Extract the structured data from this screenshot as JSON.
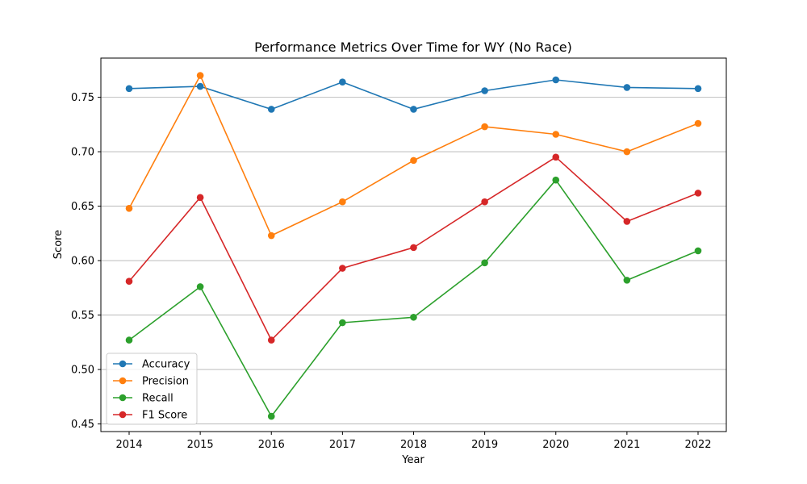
{
  "chart_data": {
    "type": "line",
    "title": "Performance Metrics Over Time for WY (No Race)",
    "xlabel": "Year",
    "ylabel": "Score",
    "x": [
      "2014",
      "2015",
      "2016",
      "2017",
      "2018",
      "2019",
      "2020",
      "2021",
      "2022"
    ],
    "y_ticks": [
      "0.45",
      "0.50",
      "0.55",
      "0.60",
      "0.65",
      "0.70",
      "0.75"
    ],
    "ylim": [
      0.443,
      0.786
    ],
    "grid": "horizontal",
    "legend_position": "lower-left",
    "series": [
      {
        "name": "Accuracy",
        "color": "#1f77b4",
        "marker": "circle",
        "values": [
          0.758,
          0.76,
          0.739,
          0.764,
          0.739,
          0.756,
          0.766,
          0.759,
          0.758
        ]
      },
      {
        "name": "Precision",
        "color": "#ff7f0e",
        "marker": "circle",
        "values": [
          0.648,
          0.77,
          0.623,
          0.654,
          0.692,
          0.723,
          0.716,
          0.7,
          0.726
        ]
      },
      {
        "name": "Recall",
        "color": "#2ca02c",
        "marker": "circle",
        "values": [
          0.527,
          0.576,
          0.457,
          0.543,
          0.548,
          0.598,
          0.674,
          0.582,
          0.609
        ]
      },
      {
        "name": "F1 Score",
        "color": "#d62728",
        "marker": "circle",
        "values": [
          0.581,
          0.658,
          0.527,
          0.593,
          0.612,
          0.654,
          0.695,
          0.636,
          0.662
        ]
      }
    ]
  }
}
